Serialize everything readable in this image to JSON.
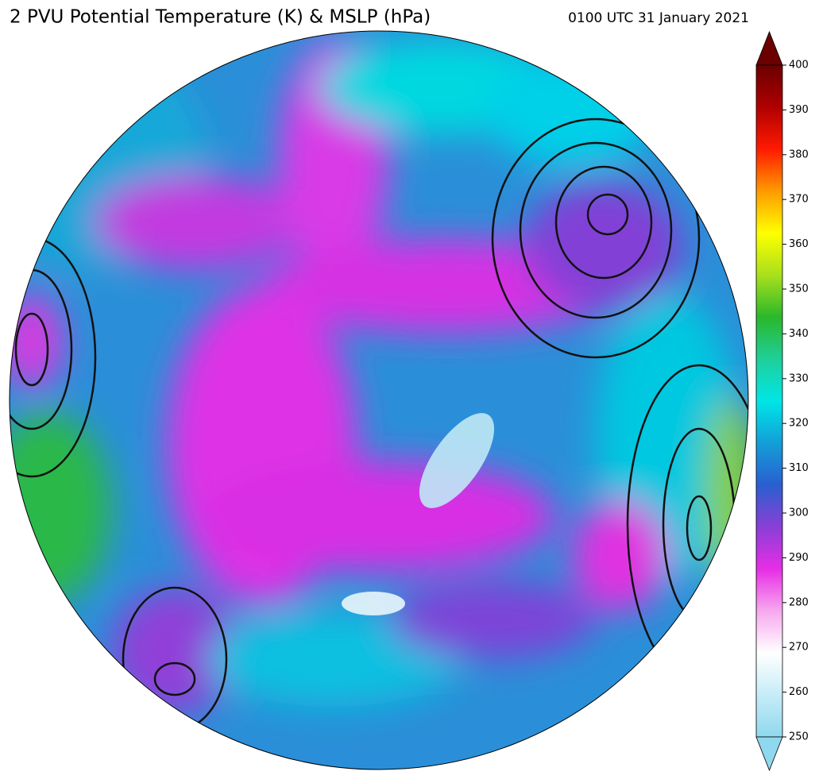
{
  "title": "2 PVU Potential Temperature (K) & MSLP (hPa)",
  "timestamp": "0100 UTC 31 January 2021",
  "colorbar": {
    "lim": [
      250,
      400
    ],
    "ticks": [
      250,
      260,
      270,
      280,
      290,
      300,
      310,
      320,
      330,
      340,
      350,
      360,
      370,
      380,
      390,
      400
    ],
    "colors": [
      "#8fd8ee",
      "#c6ecf7",
      "#ffffff",
      "#f7a8ee",
      "#e62ee6",
      "#8a3fd6",
      "#2a5fd0",
      "#139ed8",
      "#00e6e6",
      "#1fcf9a",
      "#2ab82a",
      "#a8e01c",
      "#ffff00",
      "#ff9a00",
      "#ff1a00",
      "#b00000",
      "#6a0000"
    ]
  }
}
